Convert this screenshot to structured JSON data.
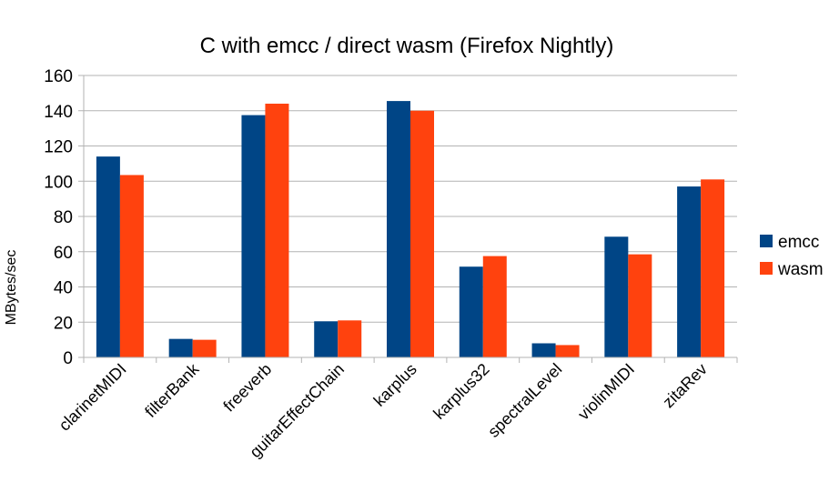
{
  "chart_data": {
    "type": "bar",
    "title": "C with emcc / direct wasm (Firefox Nightly)",
    "xlabel": "",
    "ylabel": "MBytes/sec",
    "ylim": [
      0,
      160
    ],
    "yticks": [
      0,
      20,
      40,
      60,
      80,
      100,
      120,
      140,
      160
    ],
    "grid": true,
    "legend_position": "right",
    "categories": [
      "clarinetMIDI",
      "filterBank",
      "freeverb",
      "guitarEffectChain",
      "karplus",
      "karplus32",
      "spectralLevel",
      "violinMIDI",
      "zitaRev"
    ],
    "series": [
      {
        "name": "emcc",
        "color": "#004586",
        "values": [
          114,
          10.5,
          137.5,
          20.5,
          145.5,
          51.5,
          8,
          68.5,
          97
        ]
      },
      {
        "name": "wasm",
        "color": "#ff420e",
        "values": [
          103.5,
          10,
          144,
          21,
          140,
          57.5,
          7,
          58.5,
          101
        ]
      }
    ]
  }
}
